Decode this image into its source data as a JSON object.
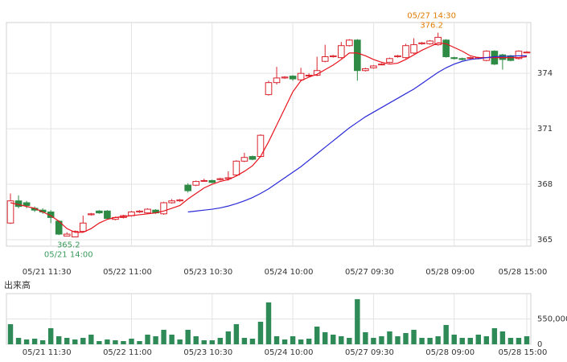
{
  "chart_data": [
    {
      "type": "candlestick",
      "categories": [
        null,
        null,
        null,
        null,
        null,
        "05/21 11:30",
        null,
        null,
        null,
        null,
        null,
        null,
        null,
        null,
        null,
        "05/22 11:00",
        null,
        null,
        null,
        null,
        null,
        null,
        null,
        null,
        null,
        "05/23 10:30",
        null,
        null,
        null,
        null,
        null,
        null,
        null,
        null,
        null,
        "05/24 10:00",
        null,
        null,
        null,
        null,
        null,
        null,
        null,
        null,
        null,
        "05/27 09:30",
        null,
        null,
        null,
        null,
        null,
        null,
        null,
        null,
        null,
        "05/28 09:00",
        null,
        null,
        null,
        null,
        null,
        null,
        null,
        null,
        "05/28 15:00"
      ],
      "open": [
        365.9,
        367.1,
        367.0,
        366.7,
        366.6,
        366.5,
        366.0,
        365.2,
        365.15,
        365.45,
        366.35,
        366.55,
        366.55,
        366.1,
        366.2,
        366.3,
        366.5,
        366.45,
        366.6,
        366.4,
        367.0,
        367.1,
        367.95,
        367.95,
        368.2,
        368.2,
        368.25,
        368.3,
        368.5,
        369.25,
        369.5,
        369.5,
        372.85,
        373.5,
        373.75,
        373.85,
        373.65,
        373.9,
        373.9,
        374.65,
        374.9,
        374.85,
        375.5,
        375.8,
        374.15,
        374.3,
        374.5,
        374.6,
        374.9,
        374.85,
        375.1,
        375.6,
        375.6,
        375.55,
        375.8,
        374.85,
        374.8,
        374.85,
        374.8,
        374.7,
        375.2,
        375.0,
        374.95,
        374.8,
        375.15
      ],
      "high": [
        367.5,
        367.4,
        367.1,
        366.8,
        366.7,
        366.6,
        366.05,
        365.4,
        365.5,
        366.3,
        366.45,
        366.6,
        366.6,
        366.25,
        366.35,
        366.55,
        366.6,
        366.7,
        366.65,
        367.05,
        367.2,
        367.2,
        368.05,
        368.2,
        368.3,
        368.25,
        368.35,
        368.7,
        369.3,
        369.7,
        369.55,
        370.7,
        373.6,
        374.35,
        373.85,
        373.9,
        374.3,
        374.0,
        374.9,
        375.55,
        375.0,
        375.7,
        375.85,
        375.85,
        374.3,
        374.45,
        374.55,
        374.85,
        375.0,
        375.6,
        375.9,
        375.7,
        375.8,
        376.2,
        375.85,
        374.9,
        374.85,
        374.9,
        374.9,
        375.25,
        375.25,
        375.05,
        375.0,
        375.25,
        375.2
      ],
      "low": [
        365.85,
        366.7,
        366.7,
        366.5,
        366.4,
        365.9,
        365.25,
        365.25,
        365.2,
        365.4,
        366.3,
        366.4,
        366.1,
        366.05,
        366.15,
        366.25,
        366.45,
        366.4,
        366.4,
        366.35,
        366.95,
        367.05,
        367.55,
        367.9,
        368.15,
        368.05,
        368.2,
        368.2,
        368.45,
        369.2,
        369.3,
        369.45,
        372.8,
        373.4,
        373.7,
        373.6,
        373.6,
        373.8,
        373.85,
        374.6,
        374.85,
        374.8,
        375.45,
        373.6,
        374.1,
        374.25,
        374.45,
        374.55,
        374.85,
        374.8,
        375.05,
        375.55,
        375.55,
        375.5,
        374.85,
        374.75,
        374.7,
        374.75,
        374.75,
        374.65,
        374.45,
        374.2,
        374.65,
        374.75,
        375.1
      ],
      "close": [
        367.1,
        366.8,
        366.85,
        366.6,
        366.5,
        366.2,
        365.3,
        365.3,
        365.45,
        365.9,
        366.4,
        366.45,
        366.15,
        366.2,
        366.3,
        366.5,
        366.55,
        366.65,
        366.45,
        367.0,
        367.1,
        367.15,
        367.65,
        368.15,
        368.2,
        368.1,
        368.3,
        368.35,
        369.25,
        369.45,
        369.35,
        370.65,
        373.5,
        373.75,
        373.8,
        373.7,
        374.0,
        373.9,
        374.15,
        374.9,
        374.95,
        375.5,
        375.8,
        374.15,
        374.25,
        374.4,
        374.5,
        374.8,
        374.95,
        375.5,
        375.55,
        375.65,
        375.75,
        375.95,
        374.9,
        374.8,
        374.75,
        374.85,
        374.85,
        375.2,
        374.5,
        374.75,
        374.7,
        375.2,
        375.15
      ],
      "up_color": "#d9232d",
      "down_color": "#2e8b45",
      "series": [
        {
          "color": "#e8141e",
          "values": [
            367.0,
            366.9,
            366.8,
            366.7,
            366.5,
            366.3,
            366.0,
            365.6,
            365.4,
            365.4,
            365.6,
            365.9,
            366.1,
            366.2,
            366.25,
            366.3,
            366.35,
            366.4,
            366.45,
            366.55,
            366.7,
            366.85,
            367.2,
            367.5,
            367.8,
            368.0,
            368.15,
            368.25,
            368.45,
            368.7,
            369.0,
            369.5,
            370.3,
            371.2,
            372.1,
            373.0,
            373.6,
            373.8,
            373.95,
            374.2,
            374.45,
            374.75,
            375.1,
            375.1,
            374.95,
            374.75,
            374.6,
            374.5,
            374.55,
            374.75,
            375.0,
            375.25,
            375.45,
            375.65,
            375.6,
            375.4,
            375.2,
            374.95,
            374.85,
            374.85,
            374.85,
            374.85,
            374.85,
            374.85,
            374.9
          ]
        },
        {
          "color": "#2a2ad8",
          "values": [
            null,
            null,
            null,
            null,
            null,
            null,
            null,
            null,
            null,
            null,
            null,
            null,
            null,
            null,
            null,
            null,
            null,
            null,
            null,
            null,
            null,
            null,
            366.5,
            366.55,
            366.6,
            366.65,
            366.72,
            366.82,
            366.95,
            367.1,
            367.28,
            367.5,
            367.75,
            368.05,
            368.35,
            368.65,
            368.95,
            369.3,
            369.65,
            370.0,
            370.35,
            370.7,
            371.05,
            371.35,
            371.65,
            371.9,
            372.15,
            372.4,
            372.65,
            372.9,
            373.15,
            373.45,
            373.75,
            374.05,
            374.3,
            374.5,
            374.65,
            374.75,
            374.8,
            374.85,
            374.9,
            374.92,
            374.93,
            374.95,
            374.95
          ]
        }
      ],
      "ylim": [
        364.65,
        376.75
      ],
      "yticks": [
        365,
        368,
        371,
        374
      ],
      "grid": true,
      "annotations": [
        {
          "kind": "max",
          "time": "05/27 14:30",
          "value": 376.2,
          "color": "#e07b00"
        },
        {
          "kind": "min",
          "time": "05/21 14:00",
          "value": 365.2,
          "color": "#3a9a5b"
        }
      ]
    },
    {
      "type": "bar",
      "title": "出来高",
      "categories": [
        null,
        null,
        null,
        null,
        null,
        "05/21 11:30",
        null,
        null,
        null,
        null,
        null,
        null,
        null,
        null,
        null,
        "05/22 11:00",
        null,
        null,
        null,
        null,
        null,
        null,
        null,
        null,
        null,
        "05/23 10:30",
        null,
        null,
        null,
        null,
        null,
        null,
        null,
        null,
        null,
        "05/24 10:00",
        null,
        null,
        null,
        null,
        null,
        null,
        null,
        null,
        null,
        "05/27 09:30",
        null,
        null,
        null,
        null,
        null,
        null,
        null,
        null,
        null,
        "05/28 09:00",
        null,
        null,
        null,
        null,
        null,
        null,
        null,
        null,
        "05/28 15:00"
      ],
      "values": [
        437500,
        140000,
        105000,
        122500,
        87500,
        350000,
        175000,
        140000,
        105000,
        140000,
        210000,
        70000,
        105000,
        87500,
        70000,
        122500,
        70000,
        210000,
        175000,
        315000,
        210000,
        105000,
        315000,
        175000,
        87500,
        87500,
        140000,
        280000,
        437500,
        140000,
        122500,
        490000,
        910000,
        175000,
        105000,
        175000,
        105000,
        122500,
        385000,
        262500,
        210000,
        175000,
        140000,
        980000,
        262500,
        140000,
        175000,
        280000,
        175000,
        245000,
        315000,
        140000,
        140000,
        175000,
        420000,
        210000,
        140000,
        140000,
        210000,
        175000,
        350000,
        280000,
        140000,
        140000,
        175000
      ],
      "color": "#2e8b57",
      "ylim": [
        0,
        1100000
      ],
      "yticks": [
        0,
        {
          "value": 550000,
          "label": "550,000"
        }
      ],
      "grid": true
    }
  ]
}
